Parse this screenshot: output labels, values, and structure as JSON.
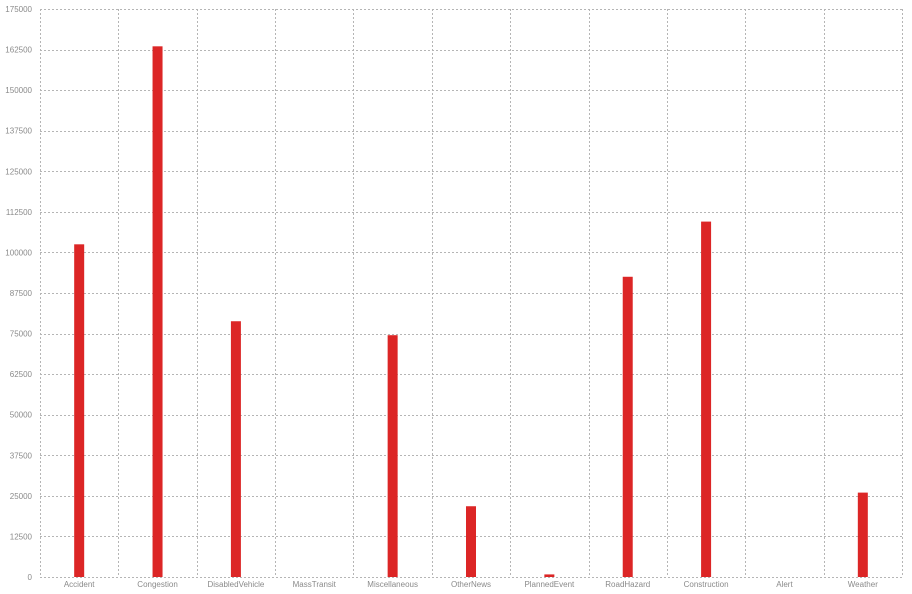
{
  "chart_data": {
    "type": "bar",
    "title": "",
    "xlabel": "",
    "ylabel": "",
    "categories": [
      "Accident",
      "Congestion",
      "DisabledVehicle",
      "MassTransit",
      "Miscellaneous",
      "OtherNews",
      "PlannedEvent",
      "RoadHazard",
      "Construction",
      "Alert",
      "Weather"
    ],
    "values": [
      102500,
      163500,
      78800,
      0,
      74500,
      21800,
      800,
      92500,
      109500,
      0,
      26000
    ],
    "ylim": [
      0,
      175000
    ],
    "yticks": [
      0,
      12500,
      25000,
      37500,
      50000,
      62500,
      75000,
      87500,
      100000,
      112500,
      125000,
      137500,
      150000,
      162500,
      175000
    ],
    "grid": true,
    "colors": {
      "bar": "#dc2626"
    }
  }
}
